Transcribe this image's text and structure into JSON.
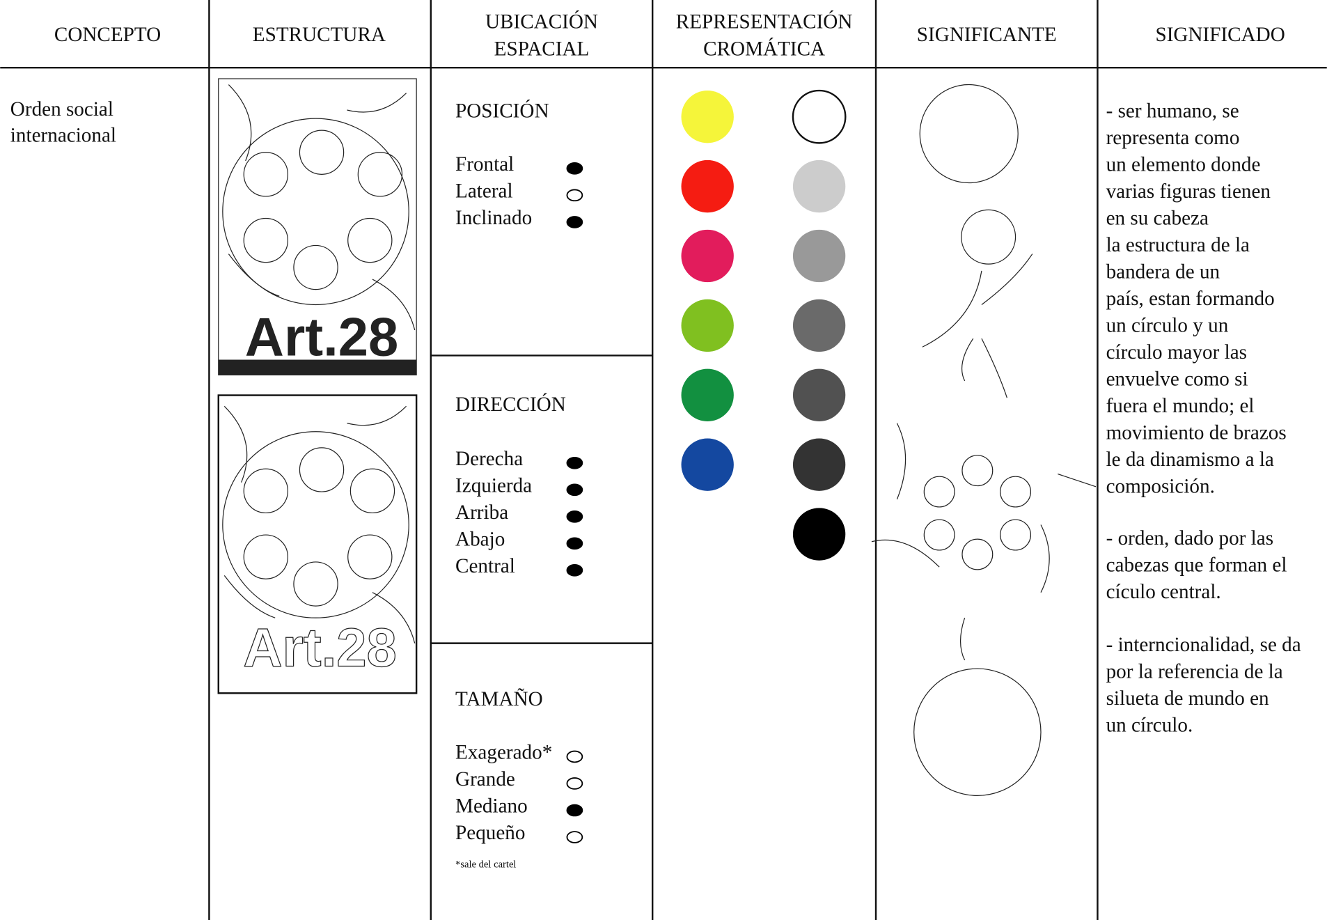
{
  "table": {
    "headers": [
      [
        "CONCEPTO"
      ],
      [
        "ESTRUCTURA"
      ],
      [
        "UBICACIÓN",
        "ESPACIAL"
      ],
      [
        "REPRESENTACIÓN",
        "CROMÁTICA"
      ],
      [
        "SIGNIFICANTE"
      ],
      [
        "SIGNIFICADO"
      ]
    ],
    "concept": [
      "Orden social",
      "internacional"
    ],
    "position": {
      "title": "POSICIÓN",
      "items": [
        {
          "label": "Frontal",
          "selected": true
        },
        {
          "label": "Lateral",
          "selected": false
        },
        {
          "label": "Inclinado",
          "selected": true
        }
      ]
    },
    "direction": {
      "title": "DIRECCIÓN",
      "items": [
        {
          "label": "Derecha",
          "selected": true
        },
        {
          "label": "Izquierda",
          "selected": true
        },
        {
          "label": "Arriba",
          "selected": true
        },
        {
          "label": "Abajo",
          "selected": true
        },
        {
          "label": "Central",
          "selected": true
        }
      ]
    },
    "size": {
      "title": "TAMAÑO",
      "items": [
        {
          "label": "Exagerado*",
          "selected": false
        },
        {
          "label": "Grande",
          "selected": false
        },
        {
          "label": "Mediano",
          "selected": true
        },
        {
          "label": "Pequeño",
          "selected": false
        }
      ],
      "note": "*sale del cartel"
    },
    "palette": {
      "left": [
        "#f5f53a",
        "#f51c12",
        "#e21c5c",
        "#80c020",
        "#129040",
        "#1448a0"
      ],
      "right": [
        "#ffffff",
        "#cccccc",
        "#999999",
        "#6a6a6a",
        "#515151",
        "#333333",
        "#000000"
      ]
    },
    "meaning": [
      [
        "- ser humano, se",
        "representa como",
        "un elemento donde",
        "varias figuras tienen",
        "en su cabeza",
        "la estructura de la",
        "bandera de un",
        "país, estan formando",
        "un círculo y un",
        "círculo mayor las",
        "envuelve como si",
        "fuera el mundo; el",
        "movimiento de brazos",
        "le da dinamismo a la",
        "composición."
      ],
      [
        "- orden, dado por las",
        "cabezas que forman el",
        "cículo central."
      ],
      [
        "- interncionalidad, se da",
        "por la referencia de la",
        "silueta de mundo en",
        "un círculo."
      ]
    ]
  }
}
